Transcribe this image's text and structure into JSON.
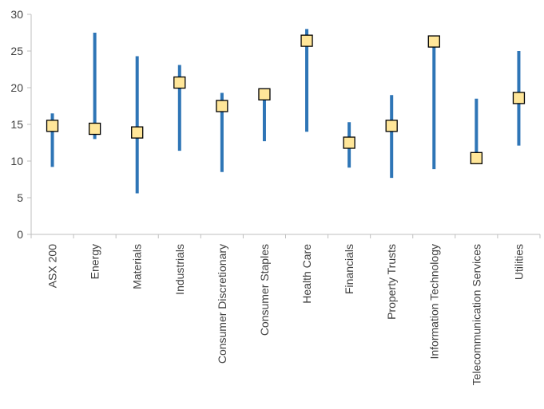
{
  "chart_data": {
    "type": "range-scatter",
    "title": "",
    "xlabel": "",
    "ylabel": "",
    "ylim": [
      0,
      30
    ],
    "yticks": [
      0,
      5,
      10,
      15,
      20,
      25,
      30
    ],
    "grid": false,
    "legend": "none",
    "categories": [
      "ASX 200",
      "Energy",
      "Materials",
      "Industrials",
      "Consumer Discretionary",
      "Consumer Staples",
      "Health Care",
      "Financials",
      "Property Trusts",
      "Information Technology",
      "Telecommunication Services",
      "Utilities"
    ],
    "ranges": [
      {
        "low": 9.2,
        "high": 16.5
      },
      {
        "low": 13.0,
        "high": 27.5
      },
      {
        "low": 5.6,
        "high": 24.3
      },
      {
        "low": 11.4,
        "high": 23.1
      },
      {
        "low": 8.5,
        "high": 19.3
      },
      {
        "low": 12.7,
        "high": 19.3
      },
      {
        "low": 14.0,
        "high": 28.0
      },
      {
        "low": 9.1,
        "high": 15.3
      },
      {
        "low": 7.7,
        "high": 19.0
      },
      {
        "low": 8.9,
        "high": 26.6
      },
      {
        "low": 9.6,
        "high": 18.5
      },
      {
        "low": 12.1,
        "high": 25.0
      }
    ],
    "values": [
      14.8,
      14.4,
      13.9,
      20.7,
      17.5,
      19.1,
      26.4,
      12.5,
      14.8,
      26.3,
      10.4,
      18.6
    ],
    "colors": {
      "range_line": "#2e75b6",
      "marker_fill": "#ffe699",
      "marker_stroke": "#000000",
      "axis": "#bfbfbf",
      "text": "#404040"
    }
  }
}
